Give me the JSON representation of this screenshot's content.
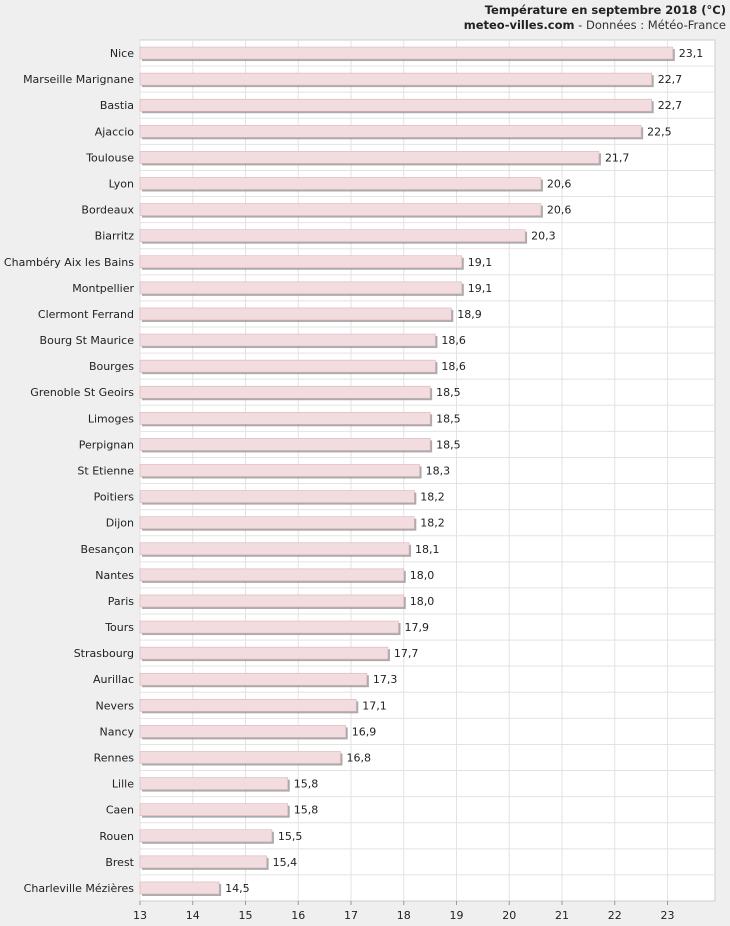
{
  "header": {
    "title": "Température en septembre 2018 (°C)",
    "site": "meteo-villes.com",
    "source": " - Données : Météo-France"
  },
  "colors": {
    "bar_fill": "#f3dcdf",
    "bar_stroke": "#d9b3b8",
    "bar_shadow": "#888888",
    "plot_bg": "#ffffff",
    "page_bg": "#efefef",
    "grid": "#e3e3e3"
  },
  "chart_data": {
    "type": "bar",
    "orientation": "horizontal",
    "title": "Température en septembre 2018 (°C)",
    "categories": [
      "Nice",
      "Marseille Marignane",
      "Bastia",
      "Ajaccio",
      "Toulouse",
      "Lyon",
      "Bordeaux",
      "Biarritz",
      "Chambéry Aix les Bains",
      "Montpellier",
      "Clermont Ferrand",
      "Bourg St Maurice",
      "Bourges",
      "Grenoble St Geoirs",
      "Limoges",
      "Perpignan",
      "St Etienne",
      "Poitiers",
      "Dijon",
      "Besançon",
      "Nantes",
      "Paris",
      "Tours",
      "Strasbourg",
      "Aurillac",
      "Nevers",
      "Nancy",
      "Rennes",
      "Lille",
      "Caen",
      "Rouen",
      "Brest",
      "Charleville Mézières"
    ],
    "values": [
      23.1,
      22.7,
      22.7,
      22.5,
      21.7,
      20.6,
      20.6,
      20.3,
      19.1,
      19.1,
      18.9,
      18.6,
      18.6,
      18.5,
      18.5,
      18.5,
      18.3,
      18.2,
      18.2,
      18.1,
      18.0,
      18.0,
      17.9,
      17.7,
      17.3,
      17.1,
      16.9,
      16.8,
      15.8,
      15.8,
      15.5,
      15.4,
      14.5
    ],
    "value_labels": [
      "23,1",
      "22,7",
      "22,7",
      "22,5",
      "21,7",
      "20,6",
      "20,6",
      "20,3",
      "19,1",
      "19,1",
      "18,9",
      "18,6",
      "18,6",
      "18,5",
      "18,5",
      "18,5",
      "18,3",
      "18,2",
      "18,2",
      "18,1",
      "18,0",
      "18,0",
      "17,9",
      "17,7",
      "17,3",
      "17,1",
      "16,9",
      "16,8",
      "15,8",
      "15,8",
      "15,5",
      "15,4",
      "14,5"
    ],
    "xlim": [
      13,
      23.9
    ],
    "x_ticks": [
      "13",
      "14",
      "15",
      "16",
      "17",
      "18",
      "19",
      "20",
      "21",
      "22",
      "23"
    ],
    "grid": true,
    "legend": "none"
  }
}
